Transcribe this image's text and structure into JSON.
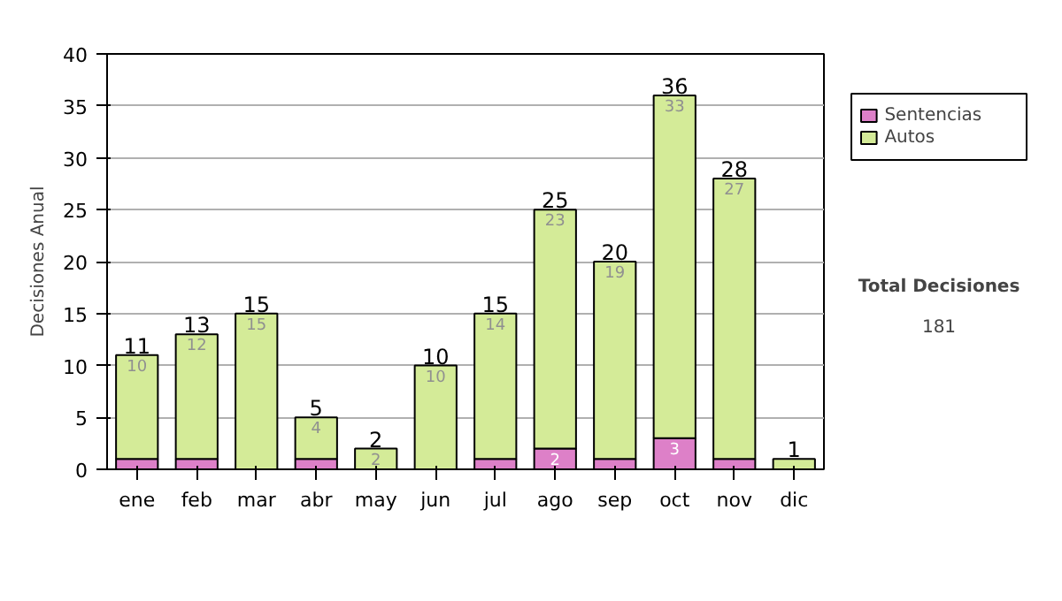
{
  "chart_data": {
    "type": "bar",
    "stacked": true,
    "ylabel": "Decisiones Anual",
    "categories": [
      "ene",
      "feb",
      "mar",
      "abr",
      "may",
      "jun",
      "jul",
      "ago",
      "sep",
      "oct",
      "nov",
      "dic"
    ],
    "series": [
      {
        "name": "Sentencias",
        "color": "#dd80c8",
        "values": [
          1,
          1,
          0,
          1,
          0,
          0,
          1,
          2,
          1,
          3,
          1,
          0
        ],
        "value_labels": [
          null,
          null,
          null,
          null,
          null,
          null,
          null,
          "2",
          null,
          "3",
          null,
          null
        ]
      },
      {
        "name": "Autos",
        "color": "#d4eb98",
        "values": [
          10,
          12,
          15,
          4,
          2,
          10,
          14,
          23,
          19,
          33,
          27,
          1
        ],
        "value_labels": [
          "10",
          "12",
          "15",
          "4",
          "2",
          "10",
          "14",
          "23",
          "19",
          "33",
          "27",
          null
        ]
      }
    ],
    "totals": [
      "11",
      "13",
      "15",
      "5",
      "2",
      "10",
      "15",
      "25",
      "20",
      "36",
      "28",
      "1"
    ],
    "ylim": [
      0,
      40
    ],
    "yticks": [
      0,
      5,
      10,
      15,
      20,
      25,
      30,
      35,
      40
    ],
    "grid": "y",
    "legend": "right",
    "annotations": [
      "Total Decisiones",
      "181"
    ]
  }
}
